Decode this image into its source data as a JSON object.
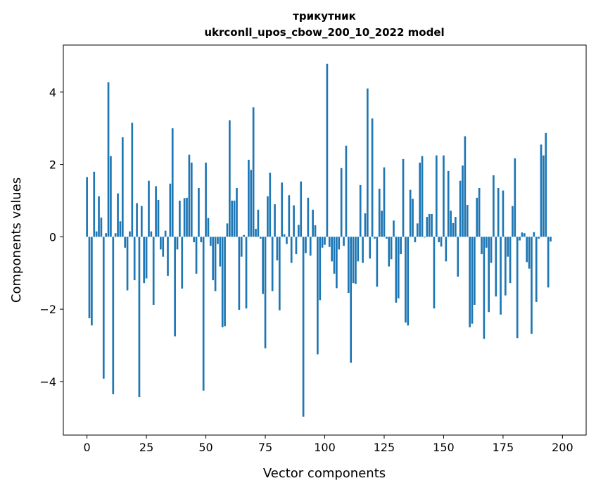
{
  "chart_data": {
    "type": "bar",
    "title": "трикутник",
    "subtitle": "ukrconll_upos_cbow_200_10_2022 model",
    "xlabel": "Vector components",
    "ylabel": "Components values",
    "xlim": [
      -9.95,
      209.95
    ],
    "ylim": [
      -5.48,
      5.3
    ],
    "xticks": [
      0,
      25,
      50,
      75,
      100,
      125,
      150,
      175,
      200
    ],
    "yticks": [
      -4,
      -2,
      0,
      2,
      4
    ],
    "ytick_labels": [
      "−4",
      "−2",
      "0",
      "2",
      "4"
    ],
    "bar_color": "#1f77b4",
    "grid": false,
    "values": [
      1.65,
      -2.25,
      -2.45,
      1.8,
      0.15,
      1.12,
      0.53,
      -3.92,
      0.1,
      4.27,
      2.23,
      -4.35,
      0.1,
      1.2,
      0.43,
      2.75,
      -0.3,
      -1.48,
      0.15,
      3.15,
      -1.2,
      0.93,
      -4.43,
      0.85,
      -1.28,
      -1.15,
      1.55,
      0.15,
      -1.88,
      1.4,
      1.02,
      -0.35,
      -0.55,
      0.17,
      -1.08,
      1.47,
      3.0,
      -2.75,
      -0.35,
      1.0,
      -1.43,
      1.07,
      1.08,
      2.27,
      2.05,
      -0.15,
      -1.02,
      1.35,
      -0.15,
      -4.25,
      2.05,
      0.52,
      -0.25,
      -1.2,
      -1.5,
      -0.2,
      -0.82,
      -2.5,
      -2.47,
      0.37,
      3.22,
      1.0,
      1.0,
      1.35,
      -2.02,
      -0.55,
      0.05,
      -1.98,
      2.13,
      1.85,
      3.58,
      0.22,
      0.75,
      -0.05,
      -1.58,
      -3.08,
      1.12,
      1.77,
      -1.5,
      0.9,
      -0.65,
      -2.03,
      1.5,
      0.07,
      -0.2,
      1.15,
      -0.72,
      0.87,
      -0.48,
      0.33,
      1.53,
      -4.97,
      -0.45,
      1.08,
      -0.52,
      0.75,
      0.32,
      -3.25,
      -1.75,
      -0.3,
      -0.22,
      4.78,
      -0.28,
      -0.68,
      -1.02,
      -1.42,
      -0.35,
      1.9,
      -0.25,
      2.52,
      -1.55,
      -3.48,
      -1.28,
      -1.3,
      -0.68,
      1.43,
      -0.72,
      0.65,
      4.1,
      -0.6,
      3.27,
      -0.05,
      -1.38,
      1.33,
      0.72,
      1.92,
      -0.05,
      -0.82,
      -0.62,
      0.45,
      -1.82,
      -1.7,
      -0.48,
      2.15,
      -2.37,
      -2.45,
      1.3,
      1.05,
      -0.15,
      0.37,
      2.05,
      2.23,
      -0.02,
      0.55,
      0.63,
      0.63,
      -1.98,
      2.25,
      -0.15,
      -0.27,
      2.25,
      -0.68,
      1.82,
      0.72,
      0.38,
      0.55,
      -1.1,
      1.55,
      1.97,
      2.78,
      0.88,
      -2.5,
      -2.4,
      -1.88,
      1.08,
      1.35,
      -0.48,
      -2.82,
      -0.3,
      -2.08,
      -0.72,
      1.7,
      -1.65,
      1.35,
      -2.15,
      1.28,
      -1.62,
      -0.55,
      -1.28,
      0.85,
      2.17,
      -2.8,
      -0.1,
      0.12,
      0.1,
      -0.7,
      -0.88,
      -2.68,
      0.13,
      -1.8,
      -0.05,
      2.55,
      2.25,
      2.87,
      -1.4,
      -0.13
    ]
  }
}
